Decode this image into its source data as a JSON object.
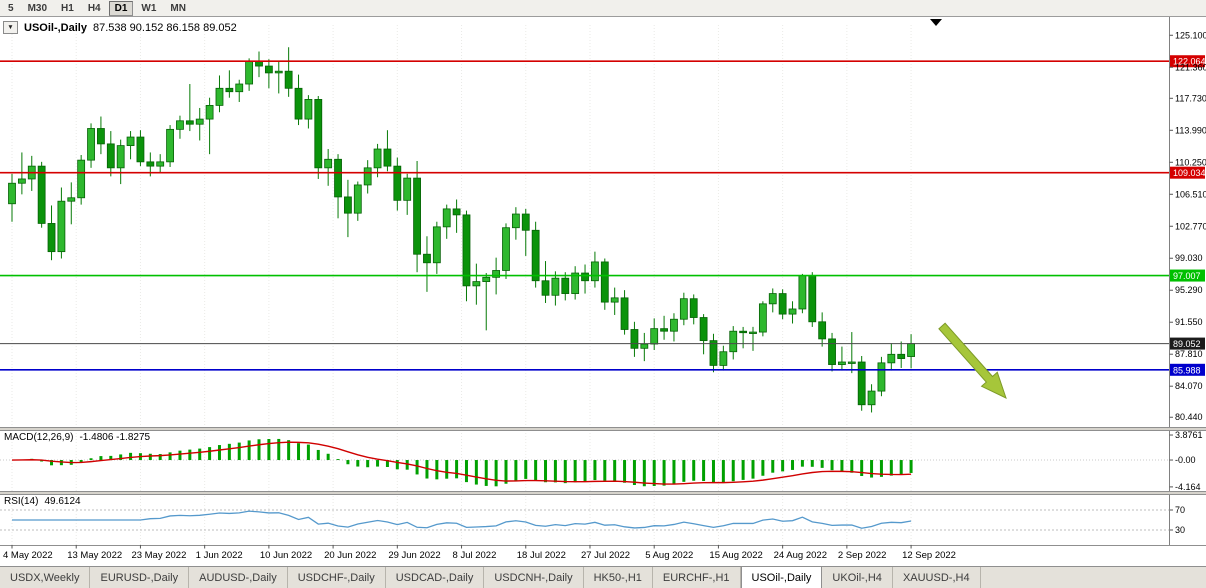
{
  "toolbar": {
    "timeframes": [
      "5",
      "M30",
      "H1",
      "H4",
      "D1",
      "W1",
      "MN"
    ],
    "active_timeframe": "D1"
  },
  "header": {
    "symbol": "USOil-,Daily",
    "ohlc": "87.538 90.152 86.158 89.052"
  },
  "chart_data": {
    "type": "candlestick",
    "symbol": "USOil-,Daily",
    "title": "USOil-,Daily 87.538 90.152 86.158 89.052",
    "y_ticks": [
      "125.100",
      "121.360",
      "117.730",
      "113.990",
      "110.250",
      "106.510",
      "102.770",
      "99.030",
      "95.290",
      "91.550",
      "87.810",
      "84.070",
      "80.440"
    ],
    "y_range": [
      79.3,
      126.3
    ],
    "x_labels": [
      "4 May 2022",
      "13 May 2022",
      "23 May 2022",
      "1 Jun 2022",
      "10 Jun 2022",
      "20 Jun 2022",
      "29 Jun 2022",
      "8 Jul 2022",
      "18 Jul 2022",
      "27 Jul 2022",
      "5 Aug 2022",
      "15 Aug 2022",
      "24 Aug 2022",
      "2 Sep 2022",
      "12 Sep 2022"
    ],
    "hlines": [
      {
        "value": 122.064,
        "label": "122.064",
        "color": "#d40000"
      },
      {
        "value": 109.034,
        "label": "109.034",
        "color": "#d40000"
      },
      {
        "value": 97.007,
        "label": "97.007",
        "color": "#00c000"
      },
      {
        "value": 85.988,
        "label": "85.988",
        "color": "#0000cc"
      }
    ],
    "price_line": {
      "value": 89.052,
      "label": "89.052",
      "color": "#1b1b1b"
    },
    "candles": [
      [
        105.4,
        108.9,
        103.3,
        107.8
      ],
      [
        107.8,
        111.4,
        106.5,
        108.3
      ],
      [
        108.3,
        111.0,
        106.9,
        109.8
      ],
      [
        109.8,
        110.3,
        102.6,
        103.1
      ],
      [
        103.1,
        105.2,
        98.8,
        99.8
      ],
      [
        99.8,
        107.3,
        99.0,
        105.7
      ],
      [
        105.7,
        107.9,
        103.0,
        106.1
      ],
      [
        106.1,
        111.1,
        105.3,
        110.5
      ],
      [
        110.5,
        114.8,
        109.6,
        114.2
      ],
      [
        114.2,
        115.6,
        111.2,
        112.4
      ],
      [
        112.4,
        113.9,
        108.6,
        109.6
      ],
      [
        109.6,
        112.9,
        107.7,
        112.2
      ],
      [
        112.2,
        113.9,
        110.6,
        113.2
      ],
      [
        113.2,
        114.0,
        109.8,
        110.3
      ],
      [
        110.3,
        111.4,
        108.6,
        109.8
      ],
      [
        109.8,
        111.2,
        109.0,
        110.3
      ],
      [
        110.3,
        114.6,
        109.7,
        114.1
      ],
      [
        114.1,
        115.7,
        113.0,
        115.1
      ],
      [
        115.1,
        119.4,
        113.9,
        114.7
      ],
      [
        114.7,
        116.6,
        112.8,
        115.3
      ],
      [
        115.3,
        117.8,
        111.2,
        116.9
      ],
      [
        116.9,
        120.4,
        116.1,
        118.9
      ],
      [
        118.9,
        121.0,
        117.8,
        118.5
      ],
      [
        118.5,
        119.9,
        117.3,
        119.4
      ],
      [
        119.4,
        122.4,
        118.6,
        122.1
      ],
      [
        122.1,
        123.2,
        120.2,
        121.5
      ],
      [
        121.5,
        122.3,
        118.9,
        120.7
      ],
      [
        120.7,
        122.0,
        118.3,
        120.9
      ],
      [
        120.9,
        123.7,
        117.9,
        118.9
      ],
      [
        118.9,
        120.5,
        114.6,
        115.3
      ],
      [
        115.3,
        118.1,
        114.2,
        117.6
      ],
      [
        117.6,
        118.0,
        108.3,
        109.6
      ],
      [
        109.6,
        111.8,
        107.5,
        110.6
      ],
      [
        110.6,
        111.2,
        103.7,
        106.2
      ],
      [
        106.2,
        108.2,
        101.5,
        104.3
      ],
      [
        104.3,
        108.0,
        103.4,
        107.6
      ],
      [
        107.6,
        110.5,
        106.6,
        109.6
      ],
      [
        109.6,
        112.4,
        108.5,
        111.8
      ],
      [
        111.8,
        114.0,
        109.2,
        109.8
      ],
      [
        109.8,
        110.8,
        104.6,
        105.8
      ],
      [
        105.8,
        108.9,
        104.1,
        108.4
      ],
      [
        108.4,
        110.4,
        97.4,
        99.5
      ],
      [
        99.5,
        101.6,
        95.1,
        98.5
      ],
      [
        98.5,
        103.3,
        97.2,
        102.7
      ],
      [
        102.7,
        105.3,
        101.3,
        104.8
      ],
      [
        104.8,
        105.9,
        102.0,
        104.1
      ],
      [
        104.1,
        104.6,
        94.0,
        95.8
      ],
      [
        95.8,
        98.4,
        93.6,
        96.3
      ],
      [
        96.3,
        97.3,
        90.6,
        96.8
      ],
      [
        96.8,
        99.1,
        94.8,
        97.6
      ],
      [
        97.6,
        103.1,
        96.6,
        102.6
      ],
      [
        102.6,
        105.0,
        101.2,
        104.2
      ],
      [
        104.2,
        104.8,
        99.3,
        102.3
      ],
      [
        102.3,
        103.3,
        95.6,
        96.4
      ],
      [
        96.4,
        98.7,
        93.8,
        94.7
      ],
      [
        94.7,
        97.5,
        93.5,
        96.7
      ],
      [
        96.7,
        97.4,
        94.1,
        94.9
      ],
      [
        94.9,
        98.1,
        94.2,
        97.3
      ],
      [
        97.3,
        98.3,
        94.9,
        96.4
      ],
      [
        96.4,
        99.8,
        95.6,
        98.6
      ],
      [
        98.6,
        99.0,
        93.0,
        93.9
      ],
      [
        93.9,
        95.6,
        92.4,
        94.4
      ],
      [
        94.4,
        95.3,
        90.1,
        90.7
      ],
      [
        90.7,
        91.6,
        87.5,
        88.5
      ],
      [
        88.5,
        90.3,
        87.0,
        89.0
      ],
      [
        89.0,
        92.0,
        88.3,
        90.8
      ],
      [
        90.8,
        92.3,
        89.5,
        90.5
      ],
      [
        90.5,
        92.6,
        89.3,
        91.9
      ],
      [
        91.9,
        95.0,
        91.2,
        94.3
      ],
      [
        94.3,
        94.8,
        91.3,
        92.1
      ],
      [
        92.1,
        92.5,
        87.8,
        89.4
      ],
      [
        89.4,
        90.2,
        85.7,
        86.5
      ],
      [
        86.5,
        88.8,
        85.9,
        88.1
      ],
      [
        88.1,
        91.1,
        87.2,
        90.5
      ],
      [
        90.5,
        91.0,
        88.5,
        90.4
      ],
      [
        90.4,
        91.0,
        88.2,
        90.4
      ],
      [
        90.4,
        94.0,
        89.9,
        93.7
      ],
      [
        93.7,
        95.5,
        92.7,
        94.9
      ],
      [
        94.9,
        95.4,
        91.9,
        92.5
      ],
      [
        92.5,
        94.0,
        91.4,
        93.1
      ],
      [
        93.1,
        97.2,
        92.6,
        97.0
      ],
      [
        97.0,
        97.4,
        91.0,
        91.6
      ],
      [
        91.6,
        92.7,
        88.7,
        89.6
      ],
      [
        89.6,
        90.3,
        85.8,
        86.6
      ],
      [
        86.6,
        88.7,
        85.9,
        86.9
      ],
      [
        86.9,
        90.4,
        85.6,
        86.9
      ],
      [
        86.9,
        87.6,
        81.2,
        81.9
      ],
      [
        81.9,
        84.3,
        81.0,
        83.5
      ],
      [
        83.5,
        87.5,
        82.9,
        86.8
      ],
      [
        86.8,
        89.1,
        85.9,
        87.8
      ],
      [
        87.8,
        89.3,
        86.2,
        87.3
      ],
      [
        87.538,
        90.152,
        86.158,
        89.052
      ]
    ],
    "macd": {
      "label": "MACD(12,26,9)",
      "values_text": "-1.4806 -1.8275",
      "axis_labels": [
        "3.8761",
        "-0.00",
        "-4.164"
      ],
      "range": [
        -4.8,
        4.5
      ],
      "params": [
        12,
        26,
        9
      ]
    },
    "rsi": {
      "label": "RSI(14)",
      "value_text": "49.6124",
      "levels": [
        "70",
        "30"
      ],
      "range": [
        0,
        100
      ],
      "period": 14
    },
    "annotations": [
      {
        "type": "arrow",
        "direction": "down-right",
        "color": "#a6c63a"
      }
    ]
  },
  "tabs": {
    "items": [
      {
        "label": "USDX,Weekly"
      },
      {
        "label": "EURUSD-,Daily"
      },
      {
        "label": "AUDUSD-,Daily"
      },
      {
        "label": "USDCHF-,Daily"
      },
      {
        "label": "USDCAD-,Daily"
      },
      {
        "label": "USDCNH-,Daily"
      },
      {
        "label": "HK50-,H1"
      },
      {
        "label": "EURCHF-,H1"
      },
      {
        "label": "USOil-,Daily"
      },
      {
        "label": "UKOil-,H4"
      },
      {
        "label": "XAUUSD-,H4"
      }
    ],
    "active": "USOil-,Daily"
  }
}
